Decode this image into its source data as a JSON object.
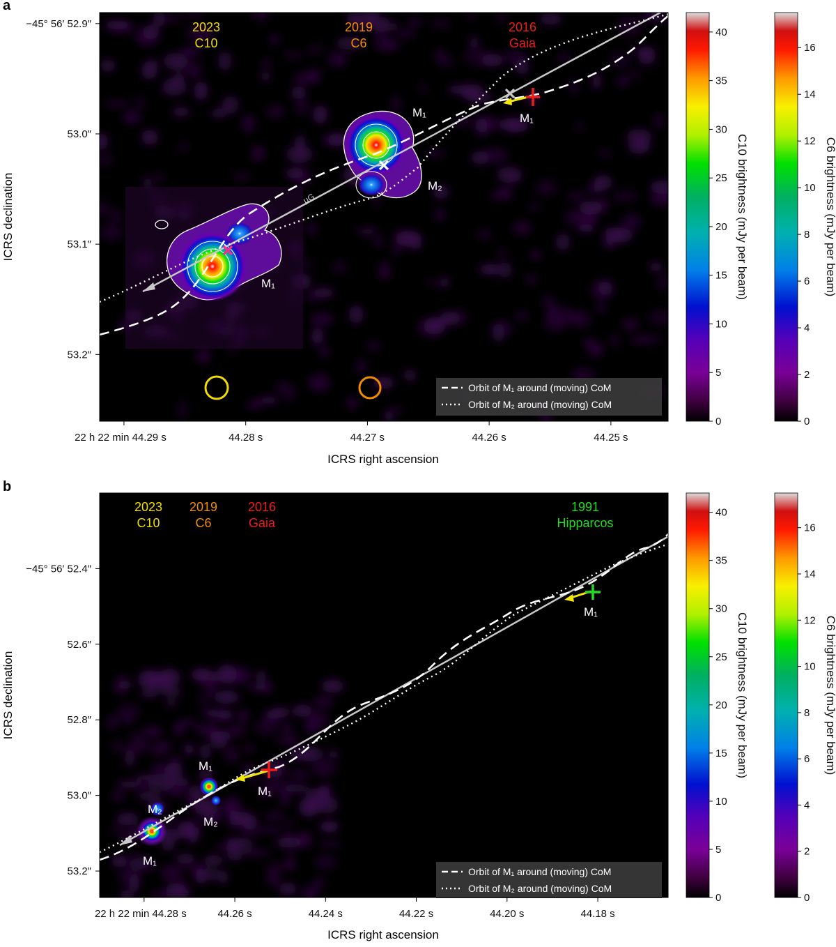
{
  "panel_letters": [
    "a",
    "b"
  ],
  "chart_data": [
    {
      "type": "scatter",
      "panel": "a",
      "xlabel": "ICRS right ascension",
      "ylabel": "ICRS declination",
      "x_ticks": [
        "22 h 22 min 44.29 s",
        "44.28 s",
        "44.27 s",
        "44.26 s",
        "44.25 s"
      ],
      "x_tick_values": [
        44.29,
        44.28,
        44.27,
        44.26,
        44.25
      ],
      "y_ticks": [
        "−45° 56′ 52.9″",
        "53.0″",
        "53.1″",
        "53.2″"
      ],
      "y_tick_values": [
        52.9,
        53.0,
        53.1,
        53.2
      ],
      "xlim": [
        44.292,
        44.2453
      ],
      "ylim": [
        52.89,
        53.2605
      ],
      "epochs": [
        {
          "year": "2023",
          "label": "C10",
          "color": "#f2dc00"
        },
        {
          "year": "2019",
          "label": "C6",
          "color": "#f28c00"
        },
        {
          "year": "2016",
          "label": "Gaia",
          "color": "#ee1c1c"
        }
      ],
      "series": [
        {
          "name": "Orbit of M₁ around (moving) CoM",
          "style": "dashed"
        },
        {
          "name": "Orbit of M₂ around (moving) CoM",
          "style": "dotted"
        }
      ],
      "sources": [
        {
          "label": "M₁",
          "ra": 44.2713,
          "dec": 53.0,
          "note": "2019 C6 peak"
        },
        {
          "label": "M₂",
          "ra": 44.269,
          "dec": 53.037,
          "note": "2019 C6 companion"
        },
        {
          "label": "M₁",
          "ra": 44.2813,
          "dec": 53.116,
          "note": "2023 C10 peak"
        },
        {
          "label": "M₁",
          "ra": 44.2586,
          "dec": 52.961,
          "note": "2016 Gaia position"
        }
      ],
      "markers": [
        {
          "label": "2016 Gaia",
          "ra": 44.2586,
          "dec": 52.961,
          "symbol": "+",
          "color": "#ee1c1c"
        },
        {
          "label": "CoM 2016",
          "ra": 44.2603,
          "dec": 52.957,
          "symbol": "x",
          "color": "#c8c8c8"
        },
        {
          "label": "CoM 2019",
          "ra": 44.2698,
          "dec": 53.021,
          "symbol": "x",
          "color": "#ffffff"
        },
        {
          "label": "CoM 2023",
          "ra": 44.28,
          "dec": 53.092,
          "symbol": "x",
          "color": "#ff2a8a"
        }
      ],
      "proper_motion_label": "μG",
      "colorbars": [
        {
          "label": "C10 brightness (mJy per beam)",
          "ticks": [
            "0",
            "5",
            "10",
            "15",
            "20",
            "25",
            "30",
            "35",
            "40"
          ],
          "tick_values": [
            0,
            5,
            10,
            15,
            20,
            25,
            30,
            35,
            40
          ],
          "range": [
            0,
            42
          ]
        },
        {
          "label": "C6 brightness (mJy per beam)",
          "ticks": [
            "0",
            "2",
            "4",
            "6",
            "8",
            "10",
            "12",
            "14",
            "16"
          ],
          "tick_values": [
            0,
            2,
            4,
            6,
            8,
            10,
            12,
            14,
            16
          ],
          "range": [
            0,
            17.5
          ]
        }
      ]
    },
    {
      "type": "scatter",
      "panel": "b",
      "xlabel": "ICRS right ascension",
      "ylabel": "ICRS declination",
      "x_ticks": [
        "22 h 22 min 44.28 s",
        "44.26 s",
        "44.24 s",
        "44.22 s",
        "44.20 s",
        "44.18 s"
      ],
      "x_tick_values": [
        44.28,
        44.26,
        44.24,
        44.22,
        44.2,
        44.18
      ],
      "y_ticks": [
        "−45° 56′ 52.4″",
        "52.6″",
        "52.8″",
        "53.0″",
        "53.2″"
      ],
      "y_tick_values": [
        52.4,
        52.6,
        52.8,
        53.0,
        53.2
      ],
      "xlim": [
        44.2898,
        44.1645
      ],
      "ylim": [
        52.2,
        53.27
      ],
      "epochs": [
        {
          "year": "2023",
          "label": "C10",
          "color": "#f2dc00"
        },
        {
          "year": "2019",
          "label": "C6",
          "color": "#f28c00"
        },
        {
          "year": "2016",
          "label": "Gaia",
          "color": "#ee1c1c"
        },
        {
          "year": "1991",
          "label": "Hipparcos",
          "color": "#22dd22"
        }
      ],
      "series": [
        {
          "name": "Orbit of M₁ around (moving) CoM",
          "style": "dashed"
        },
        {
          "name": "Orbit of M₂ around (moving) CoM",
          "style": "dotted"
        }
      ],
      "sources": [
        {
          "label": "M₁",
          "ra": 44.2712,
          "dec": 53.0,
          "note": "2019 M1"
        },
        {
          "label": "M₂",
          "ra": 44.2705,
          "dec": 53.11,
          "note": "2019 M2"
        },
        {
          "label": "M₂",
          "ra": 44.28,
          "dec": 53.065,
          "note": "2023 M2"
        },
        {
          "label": "M₁",
          "ra": 44.28,
          "dec": 53.215,
          "note": "2023 M1"
        },
        {
          "label": "M₁",
          "ra": 44.2582,
          "dec": 53.017,
          "note": "2016 Gaia"
        },
        {
          "label": "M₁",
          "ra": 44.1817,
          "dec": 52.575,
          "note": "1991 Hipparcos"
        }
      ],
      "markers": [
        {
          "label": "2016 Gaia",
          "ra": 44.2582,
          "dec": 52.985,
          "symbol": "+",
          "color": "#ee1c1c"
        },
        {
          "label": "1991 Hipparcos",
          "ra": 44.1817,
          "dec": 52.51,
          "symbol": "+",
          "color": "#22dd22"
        }
      ],
      "colorbars": [
        {
          "label": "C10 brightness (mJy per beam)",
          "ticks": [
            "0",
            "5",
            "10",
            "15",
            "20",
            "25",
            "30",
            "35",
            "40"
          ],
          "tick_values": [
            0,
            5,
            10,
            15,
            20,
            25,
            30,
            35,
            40
          ],
          "range": [
            0,
            42
          ]
        },
        {
          "label": "C6 brightness (mJy per beam)",
          "ticks": [
            "0",
            "2",
            "4",
            "6",
            "8",
            "10",
            "12",
            "14",
            "16"
          ],
          "tick_values": [
            0,
            2,
            4,
            6,
            8,
            10,
            12,
            14,
            16
          ],
          "range": [
            0,
            17.5
          ]
        }
      ]
    }
  ],
  "colors": {
    "map_background": "#000000",
    "noise": "#3a0a4e",
    "track": "#c8c8c8",
    "proper_motion_arrow": "#f5e60a",
    "contour": "#ffffff"
  }
}
